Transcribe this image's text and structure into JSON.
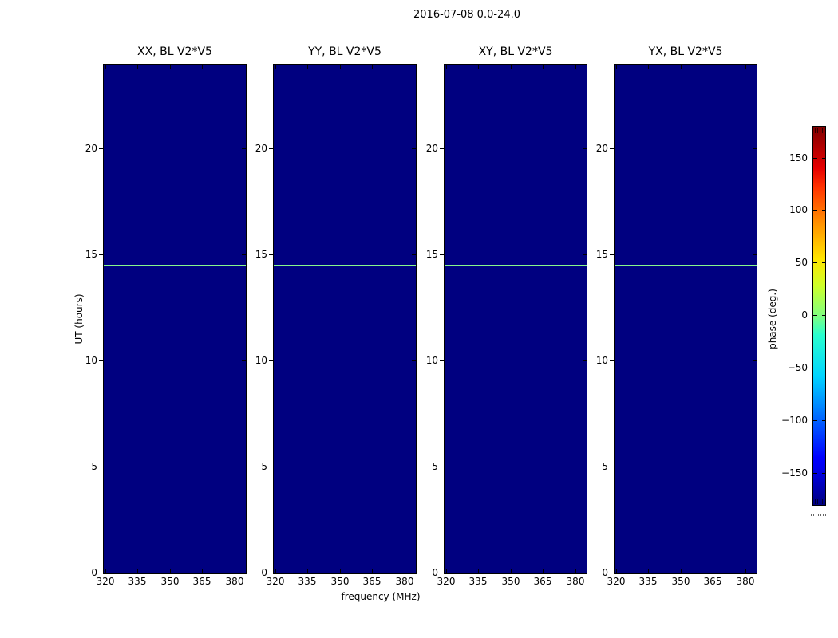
{
  "figure": {
    "title": "2016-07-08 0.0-24.0",
    "xlabel": "frequency (MHz)",
    "ylabel": "UT (hours)"
  },
  "panels": [
    {
      "title": "XX, BL V2*V5"
    },
    {
      "title": "YY, BL V2*V5"
    },
    {
      "title": "XY, BL V2*V5"
    },
    {
      "title": "YX, BL V2*V5"
    }
  ],
  "axis_ticks": {
    "x": [
      "320",
      "335",
      "350",
      "365",
      "380"
    ],
    "y": [
      "20",
      "15",
      "10",
      "5",
      "0"
    ]
  },
  "colorbar": {
    "label": "phase (deg.)",
    "ticks": [
      "150",
      "100",
      "50",
      "0",
      "−50",
      "−100",
      "−150"
    ]
  },
  "colors": {
    "background": "#ffffff",
    "heatmap_base": "#000080",
    "stripe": "#87f58b",
    "colorbar_top": "#800000",
    "colorbar_bottom": "#000080"
  },
  "chart_data": {
    "type": "heatmap",
    "figure_title": "2016-07-08 0.0-24.0",
    "panel_titles": [
      "XX, BL V2*V5",
      "YY, BL V2*V5",
      "XY, BL V2*V5",
      "YX, BL V2*V5"
    ],
    "xlabel": "frequency (MHz)",
    "ylabel": "UT (hours)",
    "x_ticks": [
      320,
      335,
      350,
      365,
      380
    ],
    "x_range": [
      320,
      385
    ],
    "y_ticks": [
      0,
      5,
      10,
      15,
      20
    ],
    "y_range": [
      0,
      24
    ],
    "colormap": "jet",
    "colorbar": {
      "label": "phase (deg.)",
      "ticks": [
        -150,
        -100,
        -50,
        0,
        50,
        100,
        150
      ],
      "range": [
        -180,
        180
      ],
      "position": "right"
    },
    "grid": false,
    "values_summary": "All four panels are uniformly at the colormap minimum (phase ~ -180 deg, dark navy) across 320-385 MHz and UT 0-24 h, except a single narrow horizontal stripe of phase ~ 0 deg (pale green) spanning all frequencies",
    "stripe": {
      "ut_hours": 14.5,
      "phase_deg": 0,
      "extent": "full frequency range, all four panels"
    }
  }
}
